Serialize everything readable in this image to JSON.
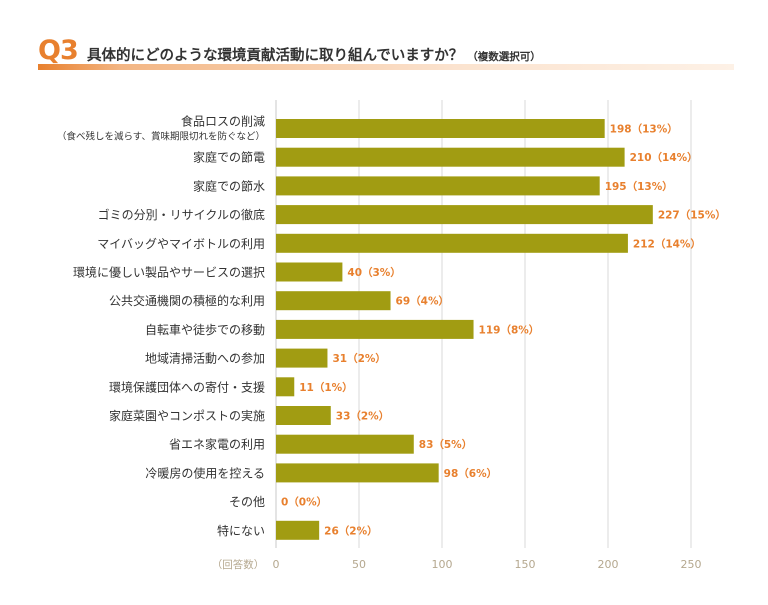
{
  "question": {
    "number": "Q3",
    "text": "具体的にどのような環境貢献活動に取り組んでいますか？",
    "note": "（複数選択可）"
  },
  "colors": {
    "accent": "#e8802e",
    "bar": "#a19c12",
    "value_label": "#e8802e",
    "grid": "#d8d8d8",
    "tick": "#b5a88f",
    "text": "#333333"
  },
  "chart_data": {
    "type": "bar",
    "orientation": "horizontal",
    "categories": [
      [
        "食品ロスの削減",
        "（食べ残しを減らす、賞味期限切れを防ぐなど）"
      ],
      [
        "家庭での節電"
      ],
      [
        "家庭での節水"
      ],
      [
        "ゴミの分別・リサイクルの徹底"
      ],
      [
        "マイバッグやマイボトルの利用"
      ],
      [
        "環境に優しい製品やサービスの選択"
      ],
      [
        "公共交通機関の積極的な利用"
      ],
      [
        "自転車や徒歩での移動"
      ],
      [
        "地域清掃活動への参加"
      ],
      [
        "環境保護団体への寄付・支援"
      ],
      [
        "家庭菜園やコンポストの実施"
      ],
      [
        "省エネ家電の利用"
      ],
      [
        "冷暖房の使用を控える"
      ],
      [
        "その他"
      ],
      [
        "特にない"
      ]
    ],
    "values": [
      198,
      210,
      195,
      227,
      212,
      40,
      69,
      119,
      31,
      11,
      33,
      83,
      98,
      0,
      26
    ],
    "value_labels": [
      "198（13%）",
      "210（14%）",
      "195（13%）",
      "227（15%）",
      "212（14%）",
      "40（3%）",
      "69（4%）",
      "119（8%）",
      "31（2%）",
      "11（1%）",
      "33（2%）",
      "83（5%）",
      "98（6%）",
      "0（0%）",
      "26（2%）"
    ],
    "xlabel": "（回答数）",
    "xlim": [
      0,
      250
    ],
    "xticks": [
      "0",
      "50",
      "100",
      "150",
      "200",
      "250"
    ],
    "grid": true
  }
}
